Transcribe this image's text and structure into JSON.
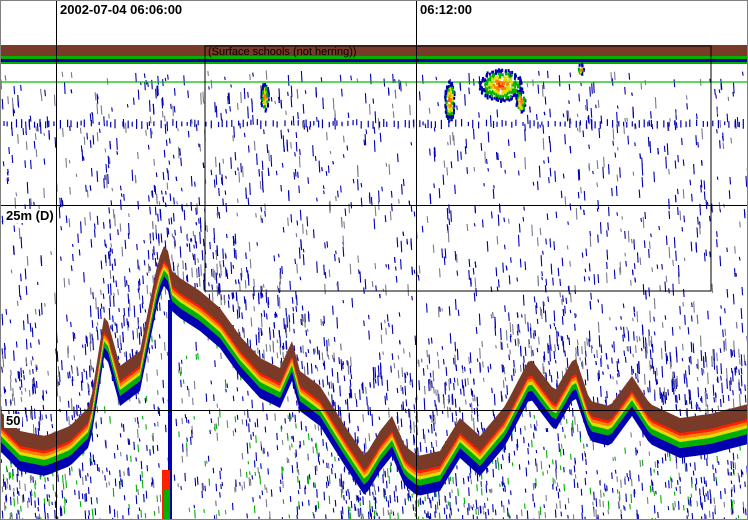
{
  "time_labels": [
    "2002-07-04 06:06:00",
    "06:12:00"
  ],
  "depth_labels": [
    "25m (D)",
    "50"
  ],
  "region": {
    "label": "(Surface schools (not herring))"
  },
  "colors": {
    "background": "#ffffff",
    "grid": "#000000",
    "seabed": "#7a3a28",
    "surface_band": "#7a3a28",
    "surface_line": "#00c000",
    "weak_echo": "#0000b0",
    "weak_echo_grey": "#7a7a8c",
    "mid_echo_green": "#00b000",
    "mid_echo_yellow": "#e0e000",
    "strong_echo_orange": "#ff8000",
    "strong_echo_red": "#ff2000"
  }
}
